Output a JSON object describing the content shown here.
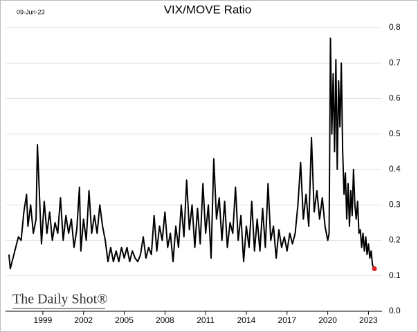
{
  "chart_data": {
    "type": "line",
    "title": "VIX/MOVE Ratio",
    "date": "09-Jun-23",
    "source": "The Daily Shot®",
    "x": [
      1996.5,
      1996.6,
      1996.8,
      1997.0,
      1997.2,
      1997.4,
      1997.6,
      1997.8,
      1997.9,
      1998.1,
      1998.3,
      1998.5,
      1998.6,
      1998.8,
      1998.9,
      1999.1,
      1999.3,
      1999.5,
      1999.7,
      1999.9,
      2000.1,
      2000.3,
      2000.5,
      2000.7,
      2000.9,
      2001.1,
      2001.3,
      2001.5,
      2001.7,
      2001.8,
      2002.0,
      2002.2,
      2002.4,
      2002.6,
      2002.8,
      2003.0,
      2003.2,
      2003.4,
      2003.6,
      2003.8,
      2004.0,
      2004.2,
      2004.4,
      2004.6,
      2004.8,
      2005.0,
      2005.2,
      2005.4,
      2005.6,
      2005.8,
      2006.0,
      2006.2,
      2006.4,
      2006.6,
      2006.8,
      2007.0,
      2007.2,
      2007.4,
      2007.6,
      2007.8,
      2008.0,
      2008.2,
      2008.4,
      2008.6,
      2008.8,
      2009.0,
      2009.2,
      2009.4,
      2009.6,
      2009.8,
      2010.0,
      2010.2,
      2010.4,
      2010.6,
      2010.8,
      2011.0,
      2011.2,
      2011.4,
      2011.6,
      2011.8,
      2012.0,
      2012.2,
      2012.4,
      2012.6,
      2012.8,
      2013.0,
      2013.2,
      2013.4,
      2013.6,
      2013.8,
      2014.0,
      2014.2,
      2014.4,
      2014.6,
      2014.8,
      2015.0,
      2015.2,
      2015.4,
      2015.6,
      2015.8,
      2016.0,
      2016.2,
      2016.4,
      2016.6,
      2016.8,
      2017.0,
      2017.2,
      2017.4,
      2017.6,
      2017.8,
      2018.0,
      2018.2,
      2018.4,
      2018.6,
      2018.8,
      2019.0,
      2019.2,
      2019.4,
      2019.6,
      2019.8,
      2020.0,
      2020.1,
      2020.2,
      2020.3,
      2020.4,
      2020.5,
      2020.6,
      2020.7,
      2020.8,
      2020.9,
      2021.0,
      2021.1,
      2021.2,
      2021.3,
      2021.4,
      2021.5,
      2021.6,
      2021.7,
      2021.8,
      2021.9,
      2022.0,
      2022.1,
      2022.2,
      2022.3,
      2022.4,
      2022.5,
      2022.6,
      2022.7,
      2022.8,
      2022.9,
      2023.0,
      2023.1,
      2023.2,
      2023.3,
      2023.44
    ],
    "series": [
      {
        "name": "VIX/MOVE Ratio",
        "color": "#000000",
        "values": [
          0.16,
          0.12,
          0.15,
          0.18,
          0.21,
          0.2,
          0.28,
          0.33,
          0.24,
          0.3,
          0.22,
          0.26,
          0.47,
          0.28,
          0.19,
          0.31,
          0.22,
          0.28,
          0.2,
          0.25,
          0.22,
          0.32,
          0.2,
          0.27,
          0.22,
          0.26,
          0.18,
          0.23,
          0.35,
          0.17,
          0.26,
          0.2,
          0.34,
          0.22,
          0.27,
          0.22,
          0.3,
          0.24,
          0.2,
          0.14,
          0.18,
          0.14,
          0.17,
          0.14,
          0.18,
          0.15,
          0.18,
          0.14,
          0.17,
          0.15,
          0.14,
          0.16,
          0.21,
          0.15,
          0.18,
          0.16,
          0.27,
          0.17,
          0.24,
          0.2,
          0.28,
          0.18,
          0.22,
          0.14,
          0.24,
          0.18,
          0.3,
          0.21,
          0.37,
          0.23,
          0.3,
          0.18,
          0.29,
          0.19,
          0.36,
          0.22,
          0.3,
          0.15,
          0.43,
          0.26,
          0.32,
          0.2,
          0.31,
          0.18,
          0.25,
          0.22,
          0.35,
          0.2,
          0.27,
          0.14,
          0.24,
          0.18,
          0.31,
          0.17,
          0.26,
          0.17,
          0.29,
          0.18,
          0.36,
          0.2,
          0.24,
          0.15,
          0.23,
          0.18,
          0.21,
          0.17,
          0.22,
          0.19,
          0.22,
          0.3,
          0.42,
          0.26,
          0.33,
          0.24,
          0.49,
          0.28,
          0.34,
          0.26,
          0.32,
          0.24,
          0.2,
          0.22,
          0.77,
          0.5,
          0.67,
          0.45,
          0.71,
          0.4,
          0.65,
          0.52,
          0.7,
          0.45,
          0.33,
          0.39,
          0.26,
          0.36,
          0.24,
          0.34,
          0.27,
          0.4,
          0.3,
          0.26,
          0.31,
          0.22,
          0.23,
          0.18,
          0.22,
          0.17,
          0.21,
          0.16,
          0.19,
          0.15,
          0.17,
          0.13,
          0.12
        ]
      }
    ],
    "last_point_color": "#e02020",
    "xlim": [
      1996.25,
      2024.0
    ],
    "xticks": [
      1999,
      2002,
      2005,
      2008,
      2011,
      2014,
      2017,
      2020,
      2023
    ],
    "ylim": [
      0,
      0.8
    ],
    "yticks": [
      {
        "value": 0,
        "label": "0.0"
      },
      0.1,
      0.2,
      0.3,
      0.4,
      0.5,
      0.6,
      0.7,
      0.8
    ],
    "grid": true
  }
}
